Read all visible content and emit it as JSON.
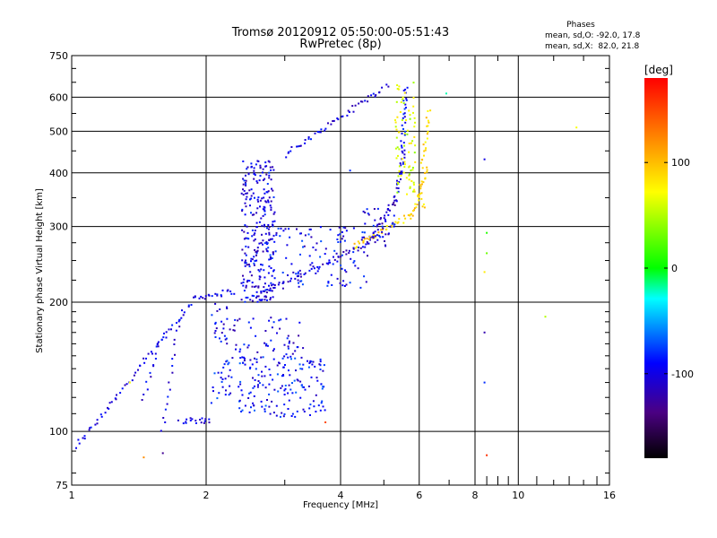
{
  "chart_data": {
    "type": "scatter",
    "title": "Tromsø 20120912 05:50:00-05:51:43",
    "subtitle": "RwPretec (8p)",
    "xlabel": "Frequency [MHz]",
    "ylabel": "Stationary phase Virtual Height [km]",
    "x_scale": "log",
    "y_scale": "log",
    "xlim": [
      1,
      16
    ],
    "ylim": [
      75,
      750
    ],
    "x_ticks": [
      1,
      2,
      4,
      6,
      8,
      10,
      16
    ],
    "x_tick_labels": [
      "1",
      "2",
      "4",
      "6",
      "8",
      "10",
      "16"
    ],
    "y_ticks": [
      75,
      100,
      200,
      300,
      400,
      500,
      600,
      750
    ],
    "y_tick_labels": [
      "75",
      "100",
      "200",
      "300",
      "400",
      "500",
      "600",
      "750"
    ],
    "grid": true,
    "stats": {
      "title": "Phases",
      "line1": "mean, sd,O: -92.0, 17.8",
      "line2": "mean, sd,X:  82.0, 21.8"
    },
    "colorbar": {
      "label": "[deg]",
      "min": -180,
      "max": 180,
      "ticks": [
        100,
        0,
        -100
      ],
      "tick_labels": [
        "100",
        "0",
        "-100"
      ]
    },
    "series": [
      {
        "traces": [
          {
            "x0": 1.02,
            "x1": 1.9,
            "y0": 92,
            "y1": 205,
            "n": 60,
            "phase": -100
          },
          {
            "x0": 1.9,
            "x1": 2.3,
            "y0": 205,
            "y1": 212,
            "n": 20,
            "phase": -100
          },
          {
            "x0": 2.55,
            "x1": 4.6,
            "y0": 205,
            "y1": 275,
            "n": 55,
            "phase": -105
          },
          {
            "x0": 4.6,
            "x1": 5.3,
            "y0": 275,
            "y1": 345,
            "n": 30,
            "phase": -110
          },
          {
            "x0": 5.3,
            "x1": 5.55,
            "y0": 345,
            "y1": 450,
            "n": 25,
            "phase": -100
          },
          {
            "x0": 5.5,
            "x1": 5.6,
            "y0": 450,
            "y1": 640,
            "n": 25,
            "phase": -95
          },
          {
            "x0": 3.0,
            "x1": 5.1,
            "y0": 440,
            "y1": 640,
            "n": 50,
            "phase": -100
          },
          {
            "x0": 4.3,
            "x1": 5.8,
            "y0": 270,
            "y1": 320,
            "n": 40,
            "phase": 90
          },
          {
            "x0": 5.8,
            "x1": 6.25,
            "y0": 320,
            "y1": 410,
            "n": 25,
            "phase": 90
          },
          {
            "x0": 6.1,
            "x1": 6.3,
            "y0": 410,
            "y1": 560,
            "n": 20,
            "phase": 90
          },
          {
            "x0": 5.6,
            "x1": 6.2,
            "y0": 400,
            "y1": 330,
            "n": 15,
            "phase": 85
          },
          {
            "x0": 1.6,
            "x1": 1.75,
            "y0": 100,
            "y1": 190,
            "n": 18,
            "phase": -100
          },
          {
            "x0": 1.45,
            "x1": 1.6,
            "y0": 120,
            "y1": 170,
            "n": 14,
            "phase": -100
          },
          {
            "x0": 1.75,
            "x1": 2.05,
            "y0": 106,
            "y1": 106,
            "n": 18,
            "phase": -100
          }
        ]
      },
      {
        "clouds": [
          {
            "x0": 2.4,
            "x1": 2.85,
            "y0": 200,
            "y1": 430,
            "n": 260,
            "phase": -100
          },
          {
            "x0": 2.7,
            "x1": 4.6,
            "y0": 215,
            "y1": 300,
            "n": 120,
            "phase": -95
          },
          {
            "x0": 2.05,
            "x1": 3.7,
            "y0": 108,
            "y1": 150,
            "n": 200,
            "phase": -90
          },
          {
            "x0": 2.3,
            "x1": 3.3,
            "y0": 150,
            "y1": 185,
            "n": 50,
            "phase": -100
          },
          {
            "x0": 2.05,
            "x1": 2.35,
            "y0": 160,
            "y1": 200,
            "n": 25,
            "phase": -100
          },
          {
            "x0": 5.3,
            "x1": 5.9,
            "y0": 350,
            "y1": 650,
            "n": 70,
            "phase": 60
          },
          {
            "x0": 4.4,
            "x1": 5.3,
            "y0": 270,
            "y1": 330,
            "n": 40,
            "phase": -100
          }
        ]
      },
      {
        "points": [
          {
            "x": 8.4,
            "y": 430,
            "phase": -100
          },
          {
            "x": 8.5,
            "y": 290,
            "phase": 10
          },
          {
            "x": 8.5,
            "y": 260,
            "phase": 30
          },
          {
            "x": 8.4,
            "y": 235,
            "phase": 80
          },
          {
            "x": 8.4,
            "y": 170,
            "phase": -120
          },
          {
            "x": 8.4,
            "y": 130,
            "phase": -80
          },
          {
            "x": 8.5,
            "y": 88,
            "phase": 160
          },
          {
            "x": 11.5,
            "y": 185,
            "phase": 50
          },
          {
            "x": 13.5,
            "y": 510,
            "phase": 70
          },
          {
            "x": 6.9,
            "y": 612,
            "phase": -20
          },
          {
            "x": 1.6,
            "y": 89,
            "phase": -130
          },
          {
            "x": 1.45,
            "y": 87,
            "phase": 120
          },
          {
            "x": 3.7,
            "y": 105,
            "phase": 150
          },
          {
            "x": 4.2,
            "y": 405,
            "phase": -80
          },
          {
            "x": 1.35,
            "y": 130,
            "phase": 70
          }
        ]
      }
    ]
  }
}
